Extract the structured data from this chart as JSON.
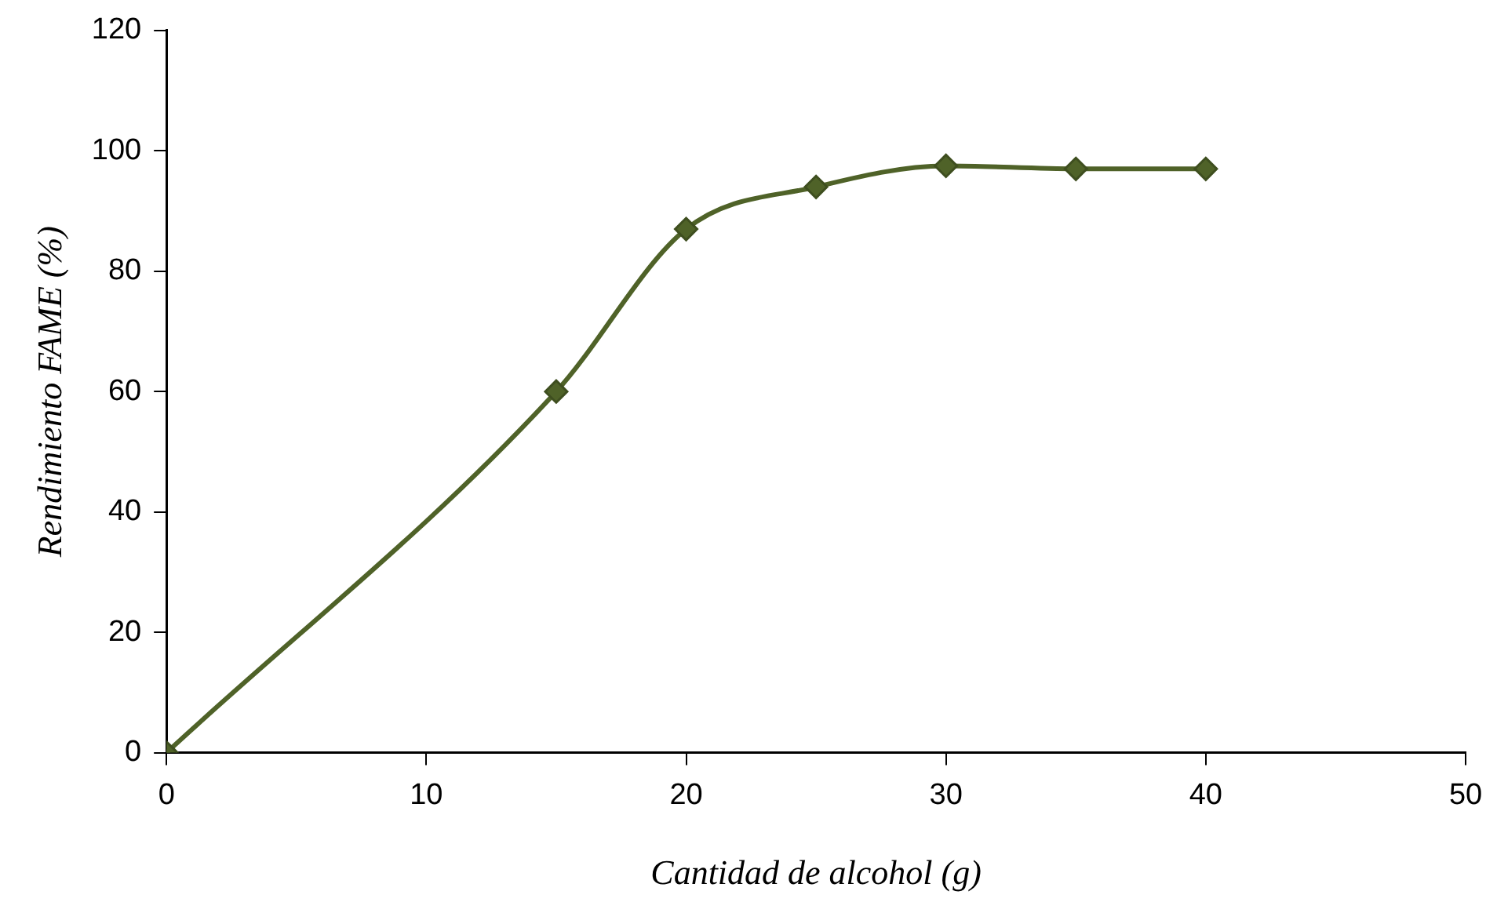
{
  "chart_data": {
    "type": "line",
    "xlabel": "Cantidad de alcohol (g)",
    "ylabel": "Rendimiento FAME (%)",
    "x": [
      0,
      15,
      20,
      25,
      30,
      35,
      40
    ],
    "series": [
      {
        "color": "#4f6228",
        "values": [
          0,
          60,
          87,
          94,
          97.5,
          97,
          97
        ]
      }
    ],
    "xlim": [
      0,
      50
    ],
    "xticks": [
      0,
      10,
      20,
      30,
      40,
      50
    ],
    "ylim": [
      0,
      120
    ],
    "yticks": [
      0,
      20,
      40,
      60,
      80,
      100,
      120
    ],
    "marker": "diamond",
    "line_style": "solid",
    "legend": false
  }
}
